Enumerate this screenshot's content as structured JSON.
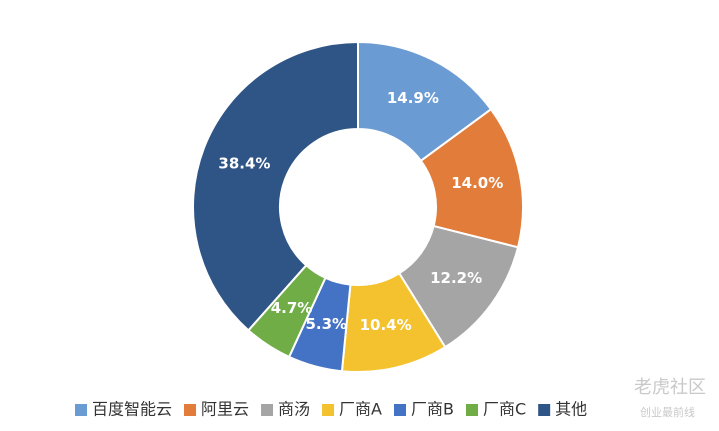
{
  "chart_data": {
    "type": "donut",
    "categories": [
      "百度智能云",
      "阿里云",
      "商汤",
      "厂商A",
      "厂商B",
      "厂商C",
      "其他"
    ],
    "values": [
      14.9,
      14.0,
      12.2,
      10.4,
      5.3,
      4.7,
      38.4
    ],
    "value_labels": [
      "14.9%",
      "14.0%",
      "12.2%",
      "10.4%",
      "5.3%",
      "4.7%",
      "38.4%"
    ],
    "colors": [
      "#6b9bd3",
      "#e27c3a",
      "#a5a5a5",
      "#f4c22f",
      "#4472c4",
      "#70ad47",
      "#2f5587"
    ],
    "legend": "bottom"
  },
  "watermark": {
    "title": "老虎社区",
    "subtitle": "创业最前线"
  }
}
